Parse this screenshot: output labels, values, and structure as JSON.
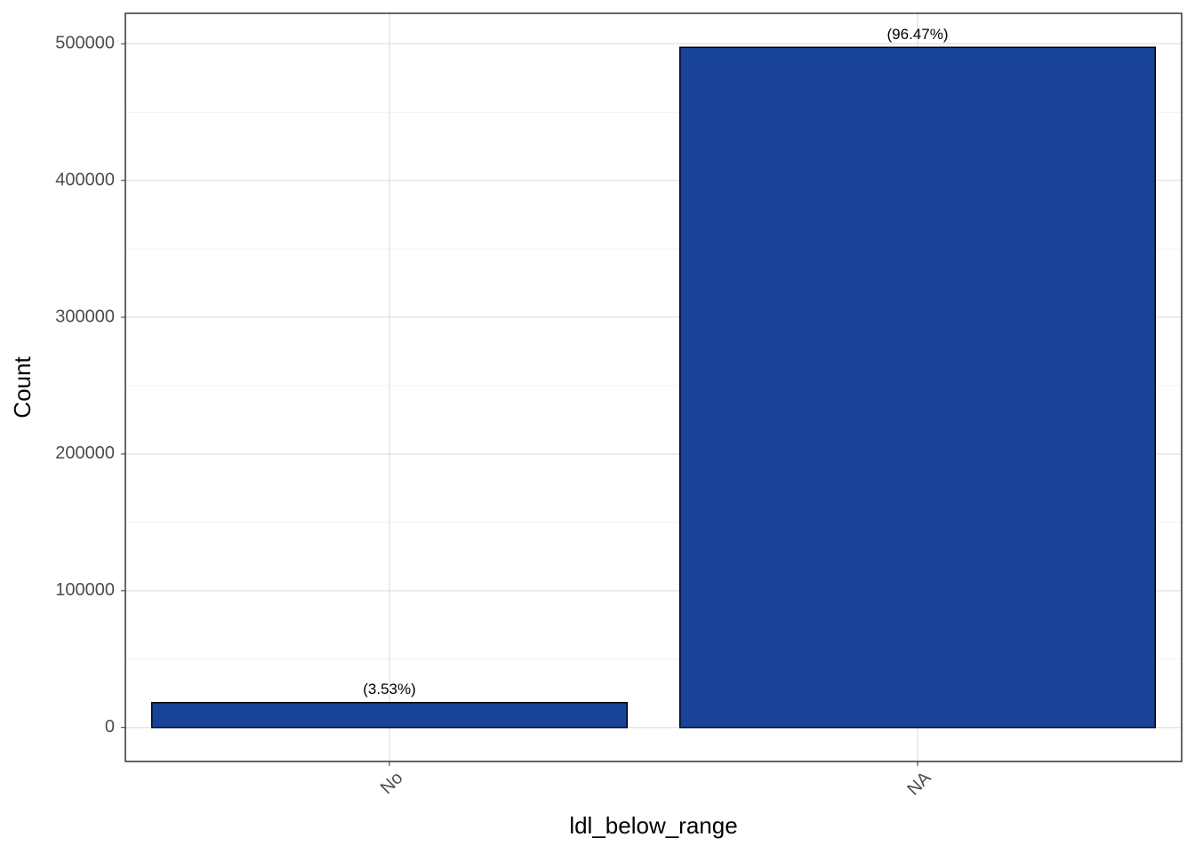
{
  "chart_data": {
    "type": "bar",
    "x_label": "ldl_below_range",
    "y_label": "Count",
    "categories": [
      "No",
      "NA"
    ],
    "values": [
      18200,
      497400
    ],
    "annotations": [
      "(3.53%)",
      "(96.47%)"
    ],
    "color": "#184399",
    "ylim": [
      -24870,
      522270
    ],
    "yticks": [
      0,
      100000,
      200000,
      300000,
      400000,
      500000
    ],
    "minor_yticks": [
      50000,
      150000,
      250000,
      350000,
      450000
    ],
    "grid": true
  }
}
